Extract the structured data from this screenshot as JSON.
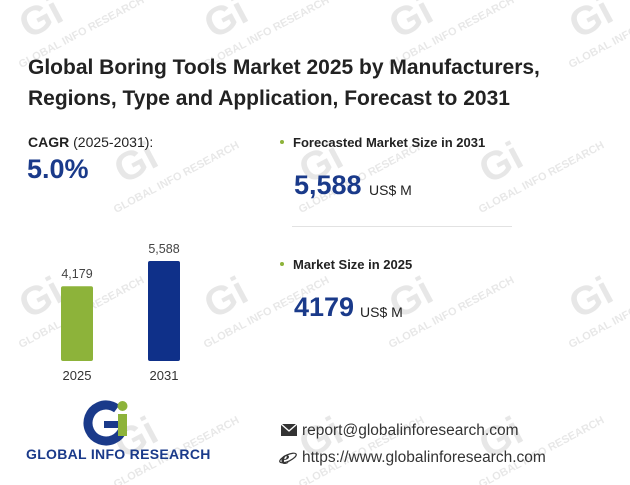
{
  "title": "Global Boring Tools Market 2025 by Manufacturers, Regions, Type and Application, Forecast to 2031",
  "cagr": {
    "label": "CAGR",
    "period": "(2025-2031):",
    "value": "5.0%"
  },
  "forecast": {
    "label": "Forecasted Market Size in 2031",
    "value": "5,588",
    "unit": "US$ M"
  },
  "current": {
    "label": "Market Size in 2025",
    "value": "4179",
    "unit": "US$ M"
  },
  "chart_data": {
    "type": "bar",
    "categories": [
      "2025",
      "2031"
    ],
    "values": [
      4179,
      5588
    ],
    "value_labels": [
      "4,179",
      "5,588"
    ],
    "colors": [
      "#8db33a",
      "#0f3089"
    ],
    "ylim": [
      0,
      5588
    ],
    "grid": false
  },
  "contact": {
    "email": "report@globalinforesearch.com",
    "website": "https://www.globalinforesearch.com"
  },
  "logo": {
    "mark": "Gi",
    "name": "GLOBAL INFO RESEARCH"
  },
  "watermark": {
    "text": "GLOBAL INFO RESEARCH",
    "mark": "Gi"
  },
  "colors": {
    "accent_blue": "#1a3a8a",
    "accent_green": "#8db33a"
  },
  "icons": {
    "email": "envelope-icon",
    "web": "ie-browser-icon",
    "bullet": "bullet-dot-icon"
  }
}
